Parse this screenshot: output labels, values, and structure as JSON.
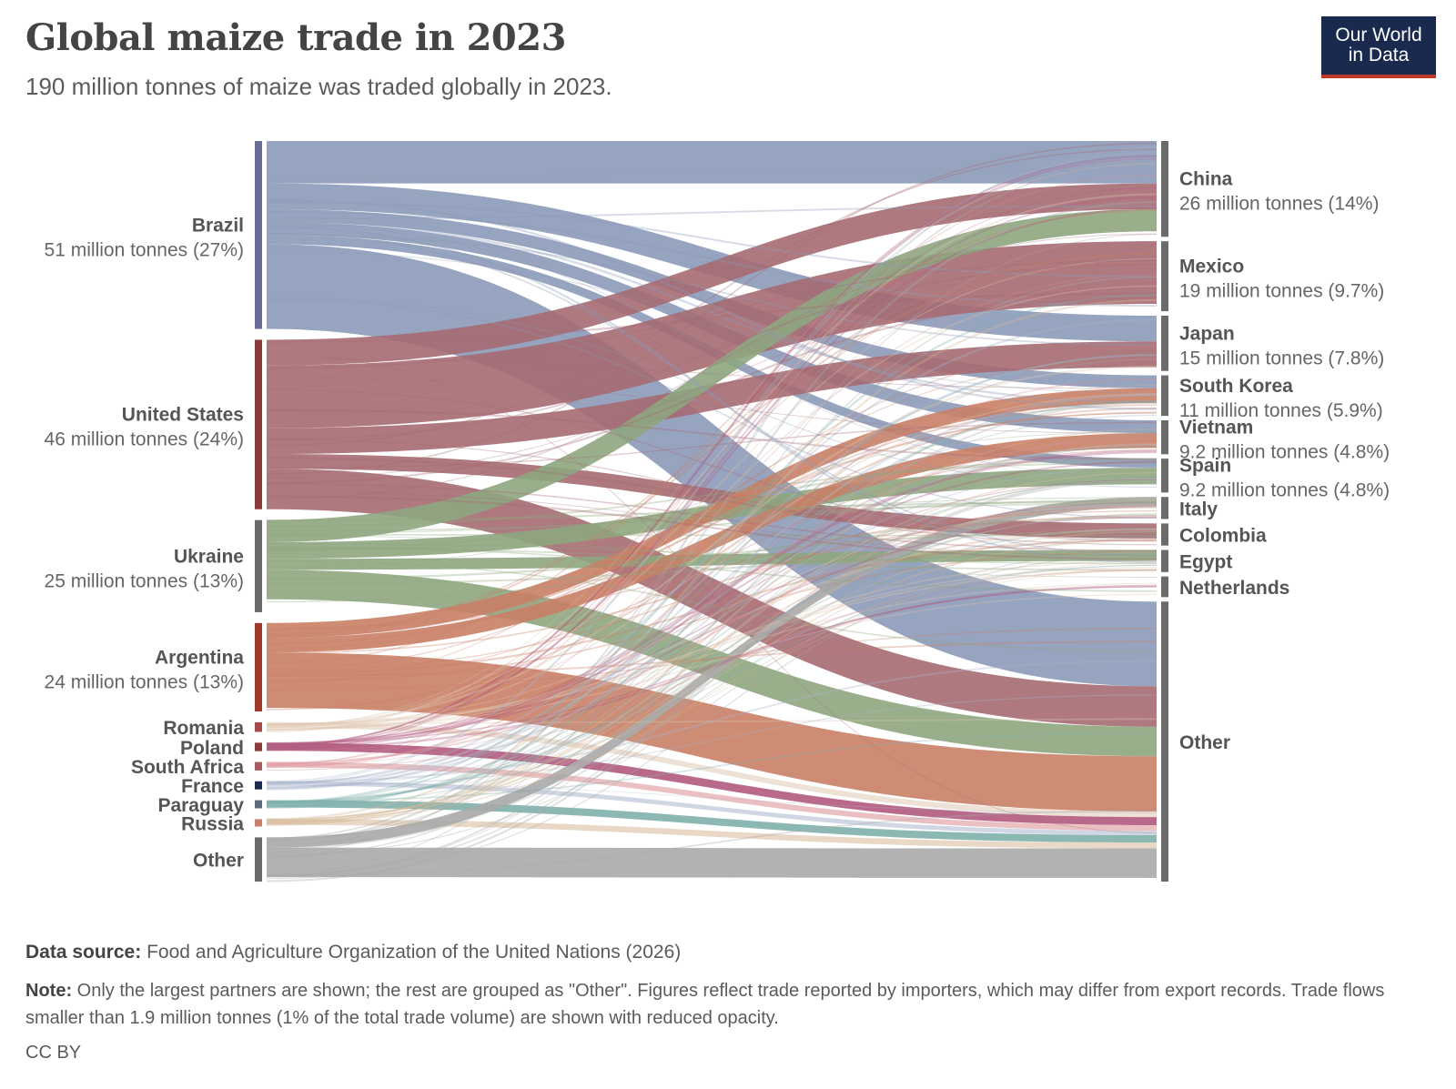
{
  "header": {
    "title": "Global maize trade in 2023",
    "subtitle": "190 million tonnes of maize was traded globally in 2023.",
    "logo_line1": "Our World",
    "logo_line2": "in Data"
  },
  "footer": {
    "source_label": "Data source:",
    "source_text": "Food and Agriculture Organization of the United Nations (2026)",
    "note_label": "Note:",
    "note_text": "Only the largest partners are shown; the rest are grouped as \"Other\". Figures reflect trade reported by importers, which may differ from export records. Trade flows smaller than 1.9 million tonnes (1% of the total trade volume) are shown with reduced opacity.",
    "license": "CC BY"
  },
  "chart_data": {
    "type": "sankey",
    "unit": "million tonnes",
    "total": 190,
    "exporters": [
      {
        "name": "Brazil",
        "label": "51 million tonnes (27%)",
        "value": 51,
        "color": "#8c9ab8",
        "bar_color": "#6b6e94"
      },
      {
        "name": "United States",
        "label": "46 million tonnes (24%)",
        "value": 46,
        "color": "#a56b72",
        "bar_color": "#8b3a3a"
      },
      {
        "name": "Ukraine",
        "label": "25 million tonnes (13%)",
        "value": 25,
        "color": "#8ea67f",
        "bar_color": "#6b6b6b"
      },
      {
        "name": "Argentina",
        "label": "24 million tonnes (13%)",
        "value": 24,
        "color": "#c97f66",
        "bar_color": "#a0392b"
      },
      {
        "name": "Romania",
        "label": "",
        "value": 2.6,
        "color": "#e0c9b2",
        "bar_color": "#a84a4a"
      },
      {
        "name": "Poland",
        "label": "",
        "value": 2.3,
        "color": "#b15a7e",
        "bar_color": "#8b3a3a"
      },
      {
        "name": "South Africa",
        "label": "",
        "value": 2.3,
        "color": "#db8c92",
        "bar_color": "#a85a60"
      },
      {
        "name": "France",
        "label": "",
        "value": 2.2,
        "color": "#a9b4cc",
        "bar_color": "#1a2a4f"
      },
      {
        "name": "Paraguay",
        "label": "",
        "value": 2.2,
        "color": "#7fb0ac",
        "bar_color": "#5b6b7b"
      },
      {
        "name": "Russia",
        "label": "",
        "value": 2.0,
        "color": "#d5b896",
        "bar_color": "#c9806b"
      },
      {
        "name": "Other",
        "label": "",
        "value": 12,
        "color": "#aaaaaa",
        "bar_color": "#6b6b6b"
      }
    ],
    "importers": [
      {
        "name": "China",
        "label": "26 million tonnes (14%)",
        "value": 26
      },
      {
        "name": "Mexico",
        "label": "19 million tonnes (9.7%)",
        "value": 19
      },
      {
        "name": "Japan",
        "label": "15 million tonnes (7.8%)",
        "value": 15
      },
      {
        "name": "South Korea",
        "label": "11 million tonnes (5.9%)",
        "value": 11
      },
      {
        "name": "Vietnam",
        "label": "9.2 million tonnes (4.8%)",
        "value": 9.2
      },
      {
        "name": "Spain",
        "label": "9.2 million tonnes (4.8%)",
        "value": 9.2
      },
      {
        "name": "Italy",
        "label": "",
        "value": 6
      },
      {
        "name": "Colombia",
        "label": "",
        "value": 6
      },
      {
        "name": "Egypt",
        "label": "",
        "value": 6
      },
      {
        "name": "Netherlands",
        "label": "",
        "value": 5.6
      },
      {
        "name": "Other",
        "label": "",
        "value": 76
      }
    ],
    "flows": [
      {
        "from": "Brazil",
        "to": "China",
        "value": 11.5
      },
      {
        "from": "Brazil",
        "to": "Japan",
        "value": 7
      },
      {
        "from": "Brazil",
        "to": "South Korea",
        "value": 3.5
      },
      {
        "from": "Brazil",
        "to": "Vietnam",
        "value": 3.5
      },
      {
        "from": "Brazil",
        "to": "Spain",
        "value": 2.5
      },
      {
        "from": "Brazil",
        "to": "Other",
        "value": 23
      },
      {
        "from": "United States",
        "to": "China",
        "value": 7
      },
      {
        "from": "United States",
        "to": "Mexico",
        "value": 17
      },
      {
        "from": "United States",
        "to": "Japan",
        "value": 7
      },
      {
        "from": "United States",
        "to": "Colombia",
        "value": 4
      },
      {
        "from": "United States",
        "to": "Other",
        "value": 11
      },
      {
        "from": "Ukraine",
        "to": "China",
        "value": 6
      },
      {
        "from": "Ukraine",
        "to": "Spain",
        "value": 4.5
      },
      {
        "from": "Ukraine",
        "to": "Egypt",
        "value": 3
      },
      {
        "from": "Ukraine",
        "to": "Other",
        "value": 8
      },
      {
        "from": "Argentina",
        "to": "South Korea",
        "value": 4
      },
      {
        "from": "Argentina",
        "to": "Vietnam",
        "value": 4
      },
      {
        "from": "Argentina",
        "to": "Other",
        "value": 15
      },
      {
        "from": "Romania",
        "to": "Other",
        "value": 1.5
      },
      {
        "from": "Poland",
        "to": "Other",
        "value": 2.2
      },
      {
        "from": "South Africa",
        "to": "Other",
        "value": 1.5
      },
      {
        "from": "France",
        "to": "Other",
        "value": 1.2
      },
      {
        "from": "Paraguay",
        "to": "Other",
        "value": 2.0
      },
      {
        "from": "Russia",
        "to": "Other",
        "value": 1.6
      },
      {
        "from": "Other",
        "to": "Italy",
        "value": 2.8
      },
      {
        "from": "Other",
        "to": "Other",
        "value": 8
      }
    ]
  }
}
